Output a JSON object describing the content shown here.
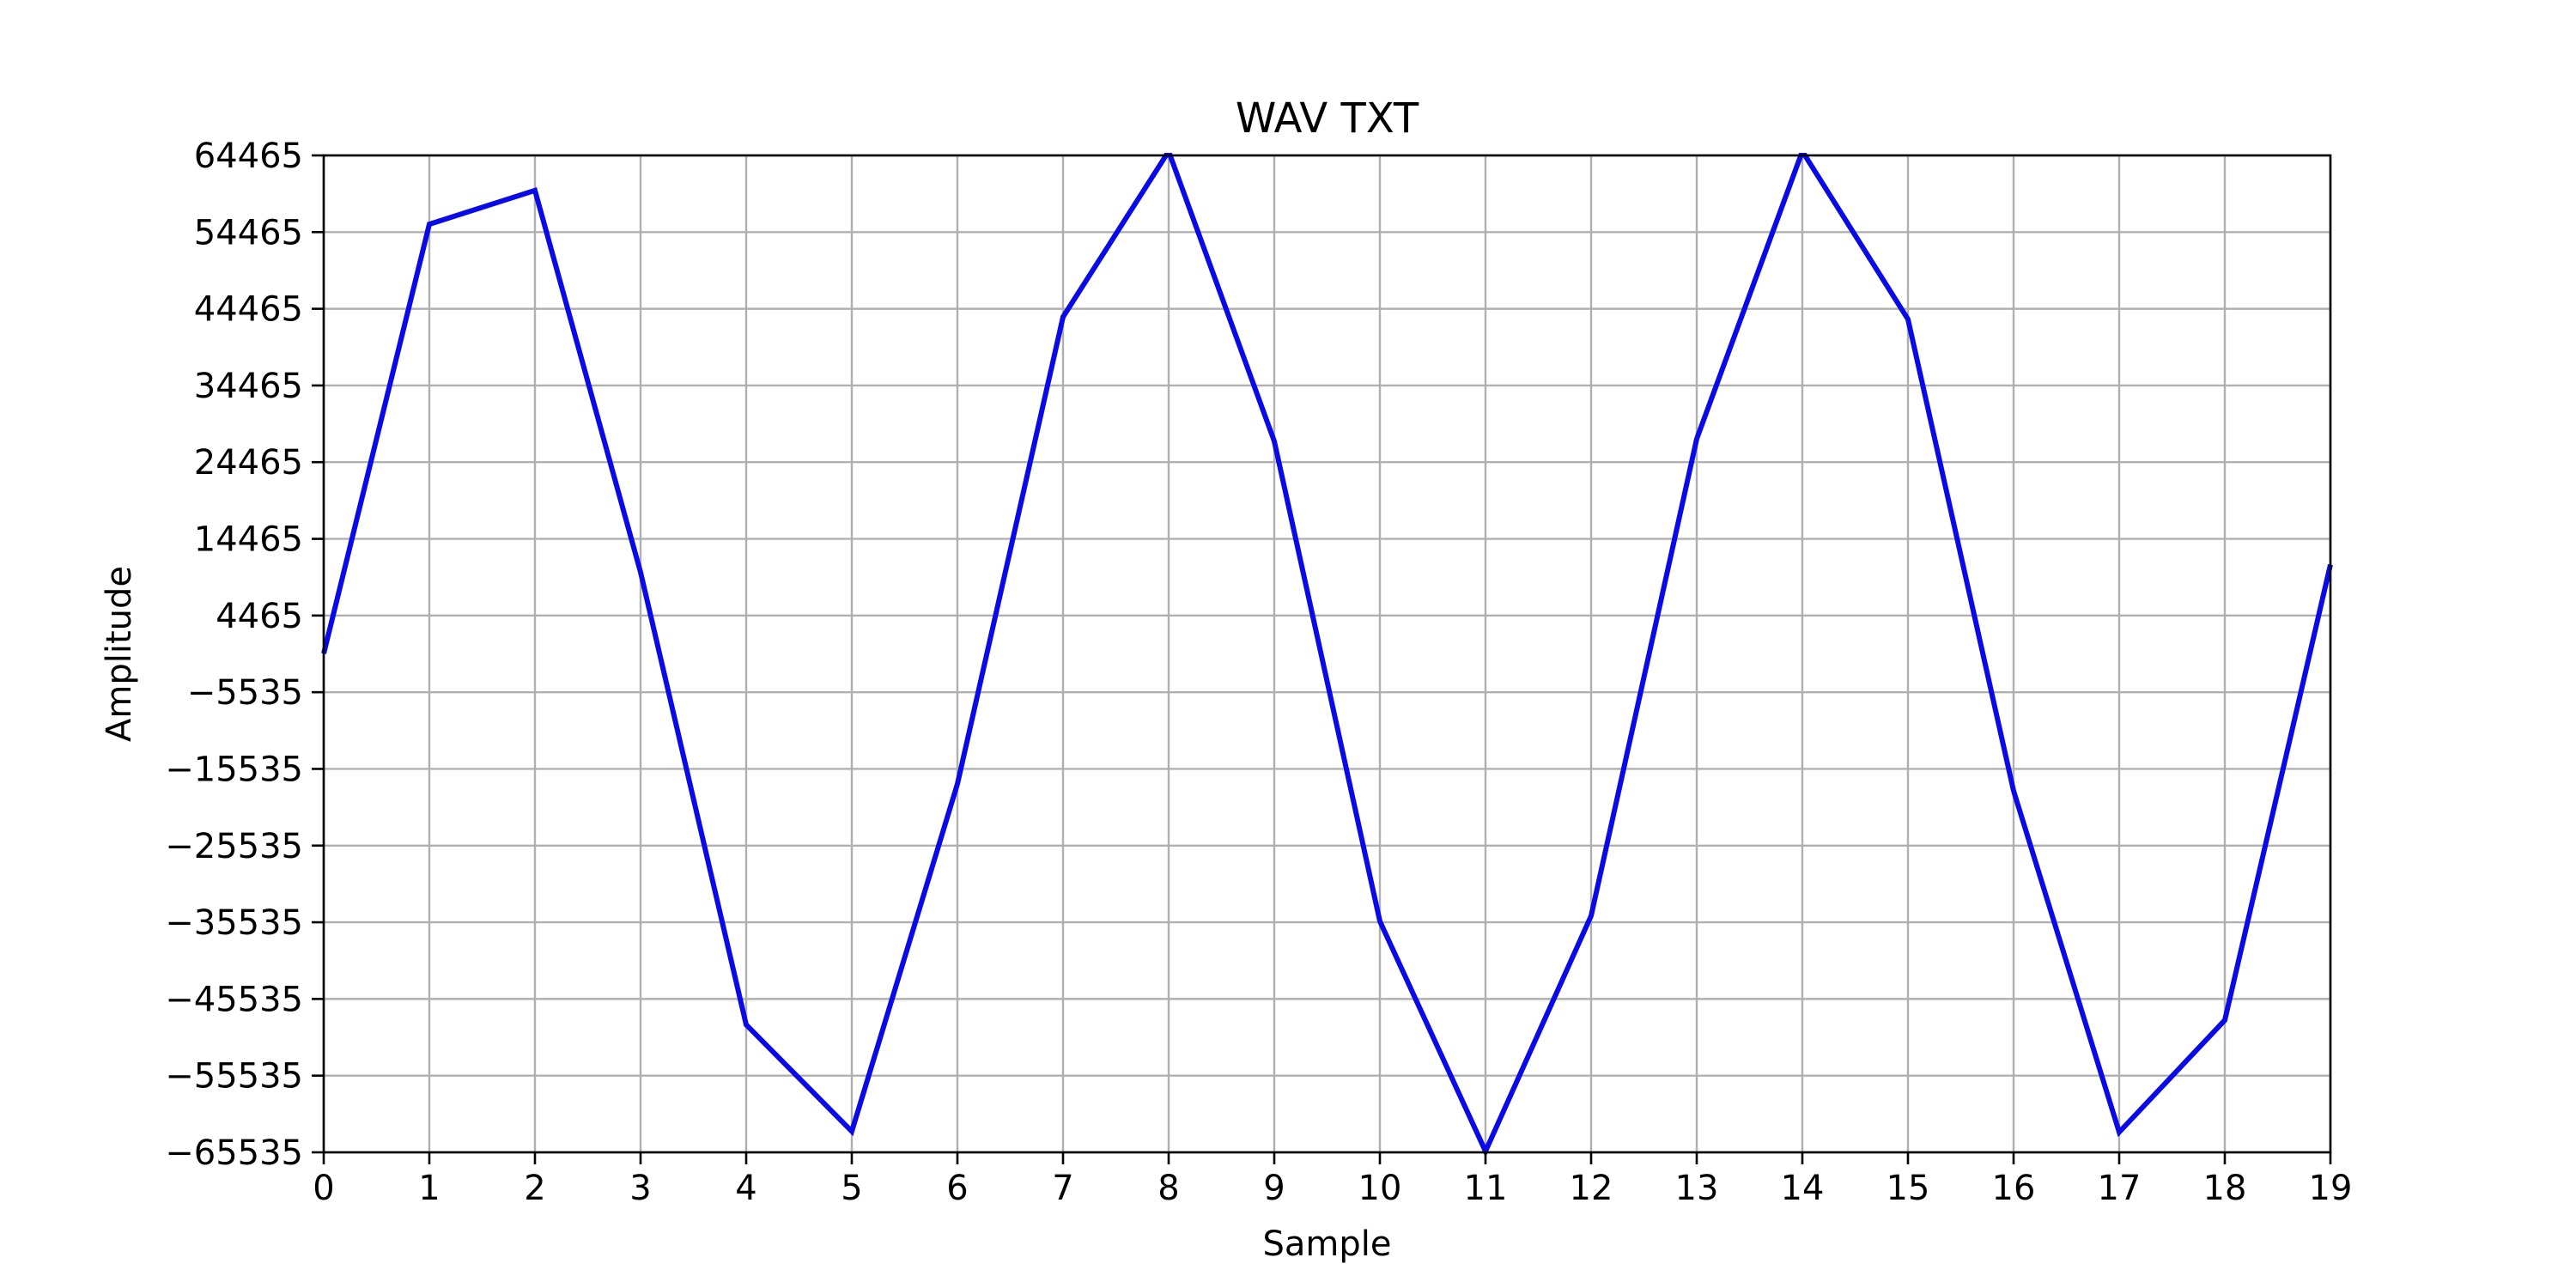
{
  "chart_data": {
    "type": "line",
    "title": "WAV TXT",
    "xlabel": "Sample",
    "ylabel": "Amplitude",
    "xlim": [
      0,
      19
    ],
    "ylim": [
      -65535,
      64465
    ],
    "x": [
      0,
      1,
      2,
      3,
      4,
      5,
      6,
      7,
      8,
      9,
      10,
      11,
      12,
      13,
      14,
      15,
      16,
      17,
      18,
      19
    ],
    "x_ticks": [
      "0",
      "1",
      "2",
      "3",
      "4",
      "5",
      "6",
      "7",
      "8",
      "9",
      "10",
      "11",
      "12",
      "13",
      "14",
      "15",
      "16",
      "17",
      "18",
      "19"
    ],
    "y_tick_values": [
      -65535,
      -55535,
      -45535,
      -35535,
      -25535,
      -15535,
      -5535,
      4465,
      14465,
      24465,
      34465,
      44465,
      54465,
      64465
    ],
    "y_ticks": [
      "−65535",
      "−55535",
      "−45535",
      "−35535",
      "−25535",
      "−15535",
      "−5535",
      "4465",
      "14465",
      "24465",
      "34465",
      "44465",
      "54465",
      "64465"
    ],
    "grid": true,
    "series": [
      {
        "color": "#0a0ae6",
        "values": [
          -500,
          55500,
          59900,
          10100,
          -48900,
          -62800,
          -17500,
          43400,
          65000,
          27200,
          -35400,
          -65400,
          -34700,
          27500,
          65000,
          43100,
          -18400,
          -62900,
          -48300,
          11100
        ]
      }
    ]
  }
}
